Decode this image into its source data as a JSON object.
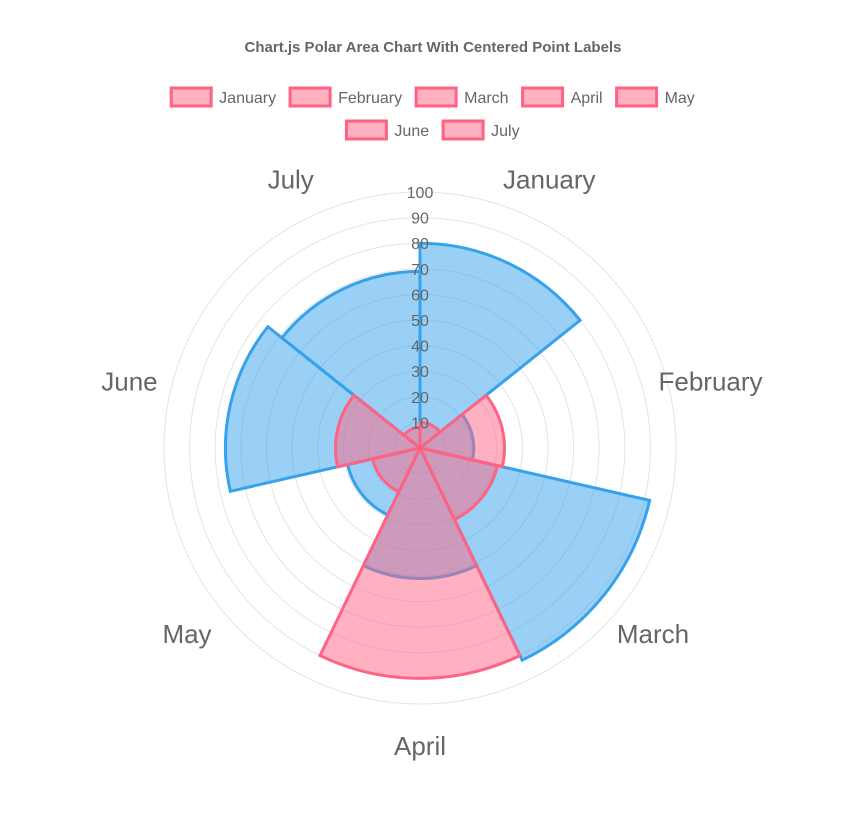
{
  "chart_data": {
    "type": "polarArea",
    "title": "Chart.js Polar Area Chart With Centered Point Labels",
    "categories": [
      "January",
      "February",
      "March",
      "April",
      "May",
      "June",
      "July"
    ],
    "rlim": [
      0,
      100
    ],
    "ticks": [
      "10",
      "20",
      "30",
      "40",
      "50",
      "60",
      "70",
      "80",
      "90",
      "100"
    ],
    "legend_position": "top",
    "grid": true,
    "series": [
      {
        "values": [
          10,
          33,
          31,
          90,
          19,
          33,
          8
        ],
        "color": "#ff6384",
        "fill": "rgba(255,99,132,0.5)"
      },
      {
        "values": [
          80,
          21,
          92,
          51,
          29,
          76,
          69
        ],
        "color": "#36a2eb",
        "fill": "rgba(54,162,235,0.5)"
      }
    ]
  }
}
